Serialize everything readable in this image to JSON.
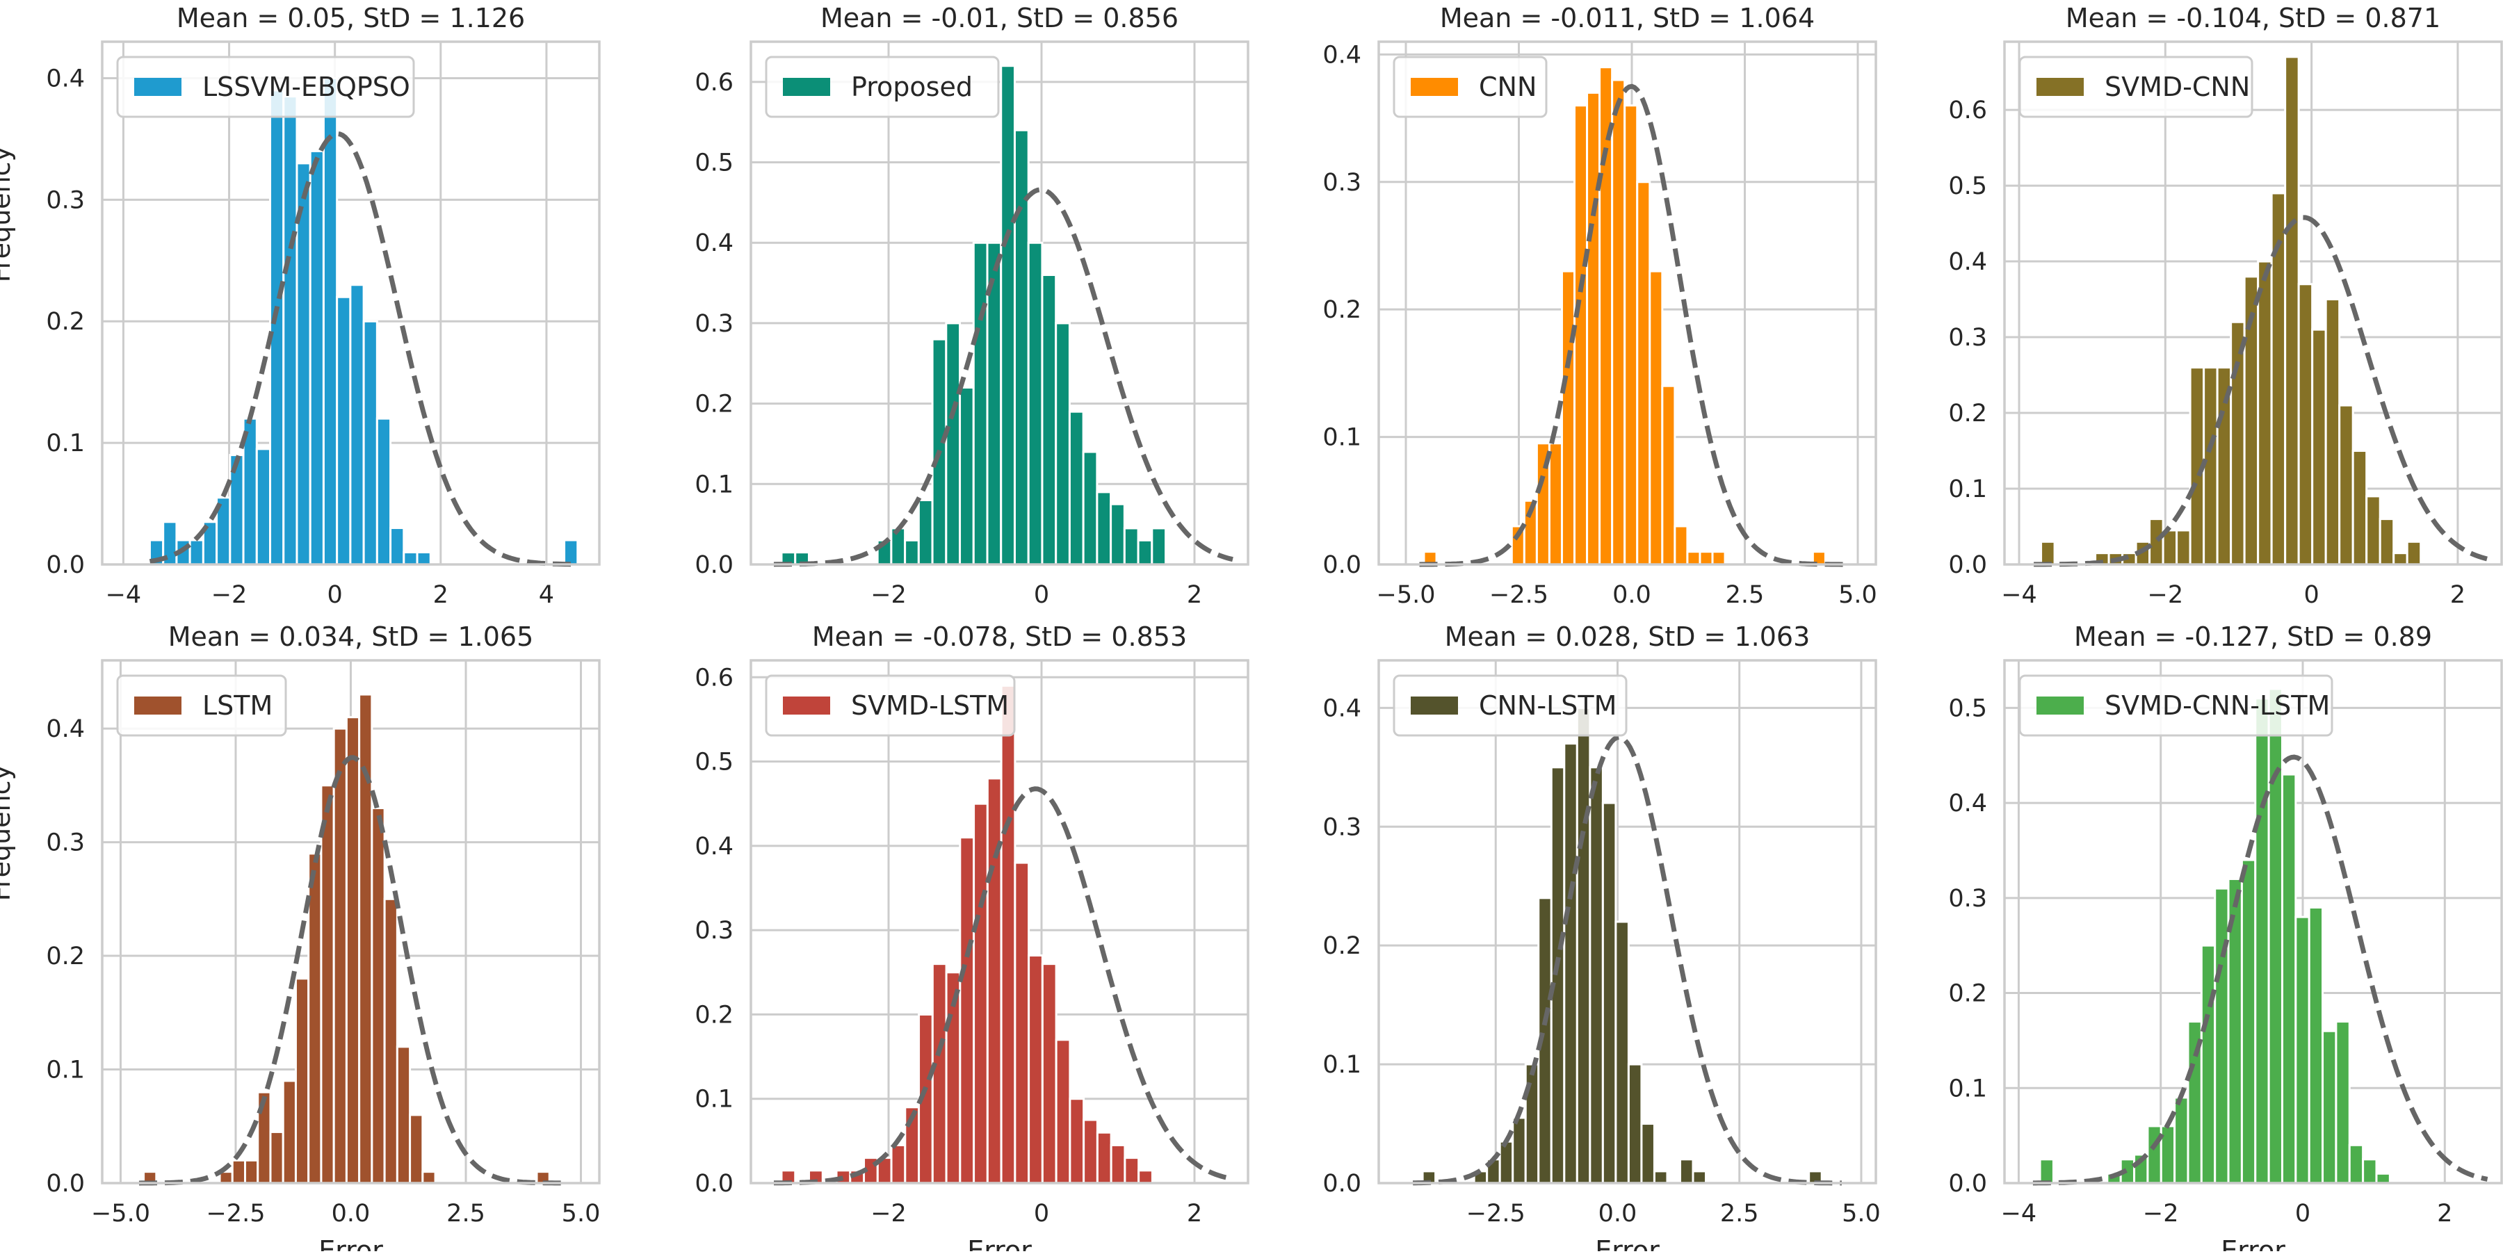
{
  "colors": {
    "background": "#ffffff",
    "panel_face": "#ffffff",
    "grid": "#cccccc",
    "frame": "#cccccc",
    "text": "#262626",
    "curve": "#666666"
  },
  "chart_data": [
    {
      "type": "bar",
      "title": "Mean = 0.05, StD = 1.126",
      "xlabel": "",
      "ylabel": "Frequency",
      "xlim": [
        -4.4,
        5.0
      ],
      "ylim": [
        0,
        0.43
      ],
      "xticks": [
        -4,
        -2,
        0,
        2,
        4
      ],
      "xtick_labels": [
        "−4",
        "−2",
        "0",
        "2",
        "4"
      ],
      "yticks": [
        0.0,
        0.1,
        0.2,
        0.3,
        0.4
      ],
      "ytick_labels": [
        "0.0",
        "0.1",
        "0.2",
        "0.3",
        "0.4"
      ],
      "grid": true,
      "legend": {
        "label": "LSSVM-EBQPSO",
        "position": "top-left"
      },
      "bar_color": "#1f9bcf",
      "bin_start": -3.5,
      "bin_width": 0.2528,
      "values": [
        0.02,
        0.035,
        0.02,
        0.02,
        0.035,
        0.055,
        0.09,
        0.12,
        0.095,
        0.39,
        0.385,
        0.33,
        0.34,
        0.4,
        0.22,
        0.23,
        0.2,
        0.12,
        0.03,
        0.01,
        0.01,
        0.0,
        0.0,
        0.0,
        0.0,
        0.0,
        0.0,
        0.0,
        0.0,
        0.0,
        0.0,
        0.02
      ],
      "curve": {
        "mean": 0.05,
        "std": 1.126,
        "xrange": [
          -3.5,
          4.6
        ]
      }
    },
    {
      "type": "bar",
      "title": "Mean = -0.01, StD = 0.856",
      "xlabel": "",
      "ylabel": "",
      "xlim": [
        -3.8,
        2.7
      ],
      "ylim": [
        0,
        0.65
      ],
      "xticks": [
        -2,
        0,
        2
      ],
      "xtick_labels": [
        "−2",
        "0",
        "2"
      ],
      "yticks": [
        0.0,
        0.1,
        0.2,
        0.3,
        0.4,
        0.5,
        0.6
      ],
      "ytick_labels": [
        "0.0",
        "0.1",
        "0.2",
        "0.3",
        "0.4",
        "0.5",
        "0.6"
      ],
      "grid": true,
      "legend": {
        "label": "Proposed",
        "position": "top-left"
      },
      "bar_color": "#0b8f77",
      "bin_start": -3.4,
      "bin_width": 0.1794,
      "values": [
        0.015,
        0.015,
        0.0,
        0.0,
        0.0,
        0.0,
        0.0,
        0.03,
        0.045,
        0.03,
        0.08,
        0.28,
        0.3,
        0.22,
        0.4,
        0.4,
        0.62,
        0.54,
        0.4,
        0.36,
        0.3,
        0.19,
        0.14,
        0.09,
        0.075,
        0.045,
        0.03,
        0.045
      ],
      "curve": {
        "mean": -0.01,
        "std": 0.856,
        "xrange": [
          -3.5,
          2.5
        ]
      }
    },
    {
      "type": "bar",
      "title": "Mean = -0.011, StD = 1.064",
      "xlabel": "",
      "ylabel": "",
      "xlim": [
        -5.6,
        5.4
      ],
      "ylim": [
        0,
        0.41
      ],
      "xticks": [
        -5.0,
        -2.5,
        0.0,
        2.5,
        5.0
      ],
      "xtick_labels": [
        "−5.0",
        "−2.5",
        "0.0",
        "2.5",
        "5.0"
      ],
      "yticks": [
        0.0,
        0.1,
        0.2,
        0.3,
        0.4
      ],
      "ytick_labels": [
        "0.0",
        "0.1",
        "0.2",
        "0.3",
        "0.4"
      ],
      "grid": true,
      "legend": {
        "label": "CNN",
        "position": "top-left"
      },
      "bar_color": "#ff8c00",
      "bin_start": -4.6,
      "bin_width": 0.2776,
      "values": [
        0.01,
        0.0,
        0.0,
        0.0,
        0.0,
        0.0,
        0.0,
        0.03,
        0.05,
        0.095,
        0.095,
        0.23,
        0.36,
        0.37,
        0.39,
        0.38,
        0.36,
        0.3,
        0.23,
        0.14,
        0.03,
        0.01,
        0.01,
        0.01,
        0.0,
        0.0,
        0.0,
        0.0,
        0.0,
        0.0,
        0.0,
        0.01
      ],
      "curve": {
        "mean": -0.011,
        "std": 1.064,
        "xrange": [
          -4.7,
          4.7
        ]
      }
    },
    {
      "type": "bar",
      "title": "Mean = -0.104, StD = 0.871",
      "xlabel": "",
      "ylabel": "",
      "xlim": [
        -4.2,
        2.6
      ],
      "ylim": [
        0,
        0.69
      ],
      "xticks": [
        -4,
        -2,
        0,
        2
      ],
      "xtick_labels": [
        "−4",
        "−2",
        "0",
        "2"
      ],
      "yticks": [
        0.0,
        0.1,
        0.2,
        0.3,
        0.4,
        0.5,
        0.6
      ],
      "ytick_labels": [
        "0.0",
        "0.1",
        "0.2",
        "0.3",
        "0.4",
        "0.5",
        "0.6"
      ],
      "grid": true,
      "legend": {
        "label": "SVMD-CNN",
        "position": "top-left"
      },
      "bar_color": "#857126",
      "bin_start": -3.7,
      "bin_width": 0.1855,
      "values": [
        0.03,
        0.0,
        0.0,
        0.0,
        0.015,
        0.015,
        0.015,
        0.03,
        0.06,
        0.045,
        0.045,
        0.26,
        0.26,
        0.26,
        0.32,
        0.38,
        0.4,
        0.49,
        0.67,
        0.37,
        0.31,
        0.35,
        0.21,
        0.15,
        0.09,
        0.06,
        0.015,
        0.03
      ],
      "curve": {
        "mean": -0.104,
        "std": 0.871,
        "xrange": [
          -3.8,
          2.4
        ]
      }
    },
    {
      "type": "bar",
      "title": "Mean = 0.034, StD = 1.065",
      "xlabel": "Error",
      "ylabel": "Frequency",
      "xlim": [
        -5.4,
        5.4
      ],
      "ylim": [
        0,
        0.46
      ],
      "xticks": [
        -5.0,
        -2.5,
        0.0,
        2.5,
        5.0
      ],
      "xtick_labels": [
        "−5.0",
        "−2.5",
        "0.0",
        "2.5",
        "5.0"
      ],
      "yticks": [
        0.0,
        0.1,
        0.2,
        0.3,
        0.4
      ],
      "ytick_labels": [
        "0.0",
        "0.1",
        "0.2",
        "0.3",
        "0.4"
      ],
      "grid": true,
      "legend": {
        "label": "LSTM",
        "position": "top-left"
      },
      "bar_color": "#a0522d",
      "bin_start": -4.5,
      "bin_width": 0.2755,
      "values": [
        0.01,
        0.0,
        0.0,
        0.0,
        0.0,
        0.0,
        0.01,
        0.02,
        0.02,
        0.08,
        0.045,
        0.09,
        0.18,
        0.29,
        0.35,
        0.4,
        0.41,
        0.43,
        0.33,
        0.25,
        0.12,
        0.06,
        0.01,
        0.0,
        0.0,
        0.0,
        0.0,
        0.0,
        0.0,
        0.0,
        0.0,
        0.01
      ],
      "curve": {
        "mean": 0.034,
        "std": 1.065,
        "xrange": [
          -4.6,
          4.6
        ]
      }
    },
    {
      "type": "bar",
      "title": "Mean = -0.078, StD = 0.853",
      "xlabel": "Error",
      "ylabel": "",
      "xlim": [
        -3.8,
        2.7
      ],
      "ylim": [
        0,
        0.62
      ],
      "xticks": [
        -2,
        0,
        2
      ],
      "xtick_labels": [
        "−2",
        "0",
        "2"
      ],
      "yticks": [
        0.0,
        0.1,
        0.2,
        0.3,
        0.4,
        0.5,
        0.6
      ],
      "ytick_labels": [
        "0.0",
        "0.1",
        "0.2",
        "0.3",
        "0.4",
        "0.5",
        "0.6"
      ],
      "grid": true,
      "legend": {
        "label": "SVMD-LSTM",
        "position": "top-left"
      },
      "bar_color": "#c0443a",
      "bin_start": -3.4,
      "bin_width": 0.1796,
      "values": [
        0.015,
        0.0,
        0.015,
        0.0,
        0.015,
        0.015,
        0.03,
        0.03,
        0.045,
        0.09,
        0.2,
        0.26,
        0.25,
        0.41,
        0.45,
        0.48,
        0.59,
        0.38,
        0.27,
        0.26,
        0.17,
        0.1,
        0.075,
        0.06,
        0.045,
        0.03,
        0.015
      ],
      "curve": {
        "mean": -0.078,
        "std": 0.853,
        "xrange": [
          -3.5,
          2.5
        ]
      }
    },
    {
      "type": "bar",
      "title": "Mean = 0.028, StD = 1.063",
      "xlabel": "Error",
      "ylabel": "",
      "xlim": [
        -4.9,
        5.3
      ],
      "ylim": [
        0,
        0.44
      ],
      "xticks": [
        -2.5,
        0.0,
        2.5,
        5.0
      ],
      "xtick_labels": [
        "−2.5",
        "0.0",
        "2.5",
        "5.0"
      ],
      "yticks": [
        0.0,
        0.1,
        0.2,
        0.3,
        0.4
      ],
      "ytick_labels": [
        "0.0",
        "0.1",
        "0.2",
        "0.3",
        "0.4"
      ],
      "grid": true,
      "legend": {
        "label": "CNN-LSTM",
        "position": "top-left"
      },
      "bar_color": "#54532c",
      "bin_start": -4.0,
      "bin_width": 0.2642,
      "values": [
        0.01,
        0.0,
        0.0,
        0.0,
        0.01,
        0.02,
        0.035,
        0.055,
        0.1,
        0.24,
        0.35,
        0.37,
        0.4,
        0.35,
        0.32,
        0.22,
        0.1,
        0.05,
        0.01,
        0.0,
        0.02,
        0.01,
        0.0,
        0.0,
        0.0,
        0.0,
        0.0,
        0.0,
        0.0,
        0.0,
        0.01
      ],
      "curve": {
        "mean": 0.028,
        "std": 1.063,
        "xrange": [
          -4.2,
          4.6
        ]
      }
    },
    {
      "type": "bar",
      "title": "Mean = -0.127, StD = 0.89",
      "xlabel": "Error",
      "ylabel": "",
      "xlim": [
        -4.2,
        2.8
      ],
      "ylim": [
        0,
        0.55
      ],
      "xticks": [
        -4,
        -2,
        0,
        2
      ],
      "xtick_labels": [
        "−4",
        "−2",
        "0",
        "2"
      ],
      "yticks": [
        0.0,
        0.1,
        0.2,
        0.3,
        0.4,
        0.5
      ],
      "ytick_labels": [
        "0.0",
        "0.1",
        "0.2",
        "0.3",
        "0.4",
        "0.5"
      ],
      "grid": true,
      "legend": {
        "label": "SVMD-CNN-LSTM",
        "position": "top-left"
      },
      "bar_color": "#4cae4c",
      "bin_start": -3.7,
      "bin_width": 0.1895,
      "values": [
        0.025,
        0.0,
        0.0,
        0.0,
        0.0,
        0.01,
        0.025,
        0.03,
        0.06,
        0.06,
        0.09,
        0.17,
        0.25,
        0.31,
        0.32,
        0.34,
        0.51,
        0.52,
        0.43,
        0.28,
        0.29,
        0.16,
        0.17,
        0.04,
        0.025,
        0.01,
        0.0
      ],
      "curve": {
        "mean": -0.127,
        "std": 0.89,
        "xrange": [
          -3.8,
          2.6
        ]
      }
    }
  ]
}
